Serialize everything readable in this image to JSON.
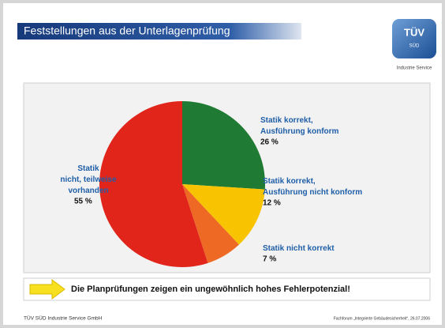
{
  "header": {
    "title": "Feststellungen aus der Unterlagenprüfung",
    "logo": {
      "mark": "TÜV",
      "sub": "SÜD",
      "caption": "Industrie Service"
    }
  },
  "chart_data": {
    "type": "pie",
    "categories": [
      "Statik korrekt,\nAusführung konform",
      "Statik korrekt,\nAusführung nicht konform",
      "Statik nicht korrekt",
      "Statik\nnicht, teilweise\nvorhanden"
    ],
    "values": [
      26,
      12,
      7,
      55
    ],
    "value_labels": [
      "26 %",
      "12 %",
      "7 %",
      "55 %"
    ],
    "colors": [
      "#1f7a34",
      "#f8c300",
      "#ee6a24",
      "#e1251b"
    ]
  },
  "callout": "Die Planprüfungen zeigen ein ungewöhnlich hohes Fehlerpotenzial!",
  "footer": {
    "left": "TÜV SÜD Industrie Service GmbH",
    "right": "Fachforum „Integrierte Gebäudesicherheit“, 26.07.2006"
  }
}
